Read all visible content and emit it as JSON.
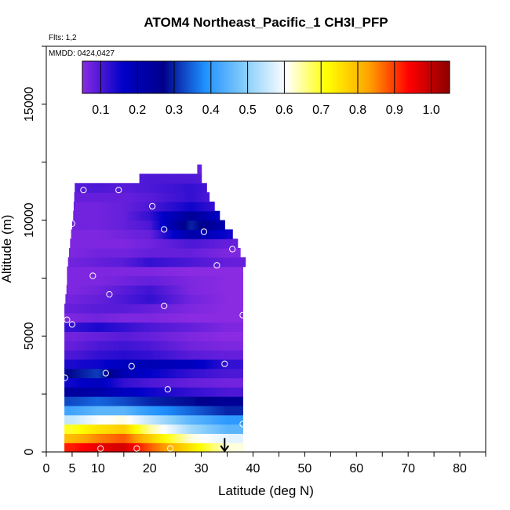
{
  "chart_data": {
    "type": "heatmap",
    "title": "ATOM4 Northeast_Pacific_1 CH3I_PFP",
    "flights_label": "Flts: 1,2",
    "dates_label": "MMDD: 0424,0427",
    "xlabel": "Latitude (deg N)",
    "ylabel": "Altitude (m)",
    "xlim": [
      0,
      85
    ],
    "ylim": [
      0,
      17500
    ],
    "x_ticks": [
      0,
      5,
      10,
      20,
      30,
      40,
      50,
      60,
      70,
      80
    ],
    "y_ticks": [
      0,
      5000,
      10000,
      15000
    ],
    "grid": false,
    "colorbar": {
      "placement": "top",
      "range": [
        0.05,
        1.05
      ],
      "ticks": [
        "0.1",
        "0.2",
        "0.3",
        "0.4",
        "0.5",
        "0.6",
        "0.7",
        "0.8",
        "0.9",
        "1.0"
      ],
      "stops": [
        "#8a2be2",
        "#0000c8",
        "#00008b",
        "#1e90ff",
        "#87cefa",
        "#ffffff",
        "#ffff00",
        "#ffa500",
        "#ff0000",
        "#8b0000"
      ]
    },
    "alt_profile": [
      {
        "alt": 200,
        "v": [
          0.92,
          0.96,
          0.98,
          0.88,
          0.75,
          0.62
        ]
      },
      {
        "alt": 600,
        "v": [
          0.8,
          0.85,
          0.88,
          0.78,
          0.62,
          0.58
        ]
      },
      {
        "alt": 1000,
        "v": [
          0.7,
          0.75,
          0.78,
          0.65,
          0.52,
          0.45
        ]
      },
      {
        "alt": 1400,
        "v": [
          0.55,
          0.6,
          0.62,
          0.55,
          0.45,
          0.4
        ]
      },
      {
        "alt": 1800,
        "v": [
          0.42,
          0.45,
          0.45,
          0.4,
          0.35,
          0.3
        ]
      },
      {
        "alt": 2200,
        "v": [
          0.33,
          0.35,
          0.33,
          0.3,
          0.28,
          0.25
        ]
      },
      {
        "alt": 2600,
        "v": [
          0.24,
          0.22,
          0.18,
          0.15,
          0.12,
          0.1
        ]
      },
      {
        "alt": 3000,
        "v": [
          0.15,
          0.18,
          0.12,
          0.1,
          0.08,
          0.07
        ]
      },
      {
        "alt": 3400,
        "v": [
          0.28,
          0.32,
          0.2,
          0.16,
          0.12,
          0.1
        ]
      },
      {
        "alt": 3800,
        "v": [
          0.14,
          0.15,
          0.18,
          0.2,
          0.18,
          0.12
        ]
      },
      {
        "alt": 4200,
        "v": [
          0.1,
          0.12,
          0.13,
          0.12,
          0.09,
          0.08
        ]
      },
      {
        "alt": 4600,
        "v": [
          0.08,
          0.1,
          0.11,
          0.1,
          0.07,
          0.06
        ]
      },
      {
        "alt": 5000,
        "v": [
          0.07,
          0.08,
          0.09,
          0.08,
          0.06,
          0.05
        ]
      },
      {
        "alt": 5400,
        "v": [
          0.12,
          0.14,
          0.12,
          0.1,
          0.08,
          0.06
        ]
      },
      {
        "alt": 5800,
        "v": [
          0.06,
          0.07,
          0.06,
          0.06,
          0.05,
          0.05
        ]
      },
      {
        "alt": 6200,
        "v": [
          0.08,
          0.09,
          0.09,
          0.08,
          0.06,
          0.05
        ]
      },
      {
        "alt": 6600,
        "v": [
          0.07,
          0.08,
          0.1,
          0.12,
          0.07,
          0.05
        ]
      },
      {
        "alt": 7000,
        "v": [
          0.06,
          0.07,
          0.09,
          0.11,
          0.06,
          0.05
        ]
      },
      {
        "alt": 7400,
        "v": [
          0.06,
          0.06,
          0.07,
          0.08,
          0.06,
          0.05
        ]
      },
      {
        "alt": 7800,
        "v": [
          0.06,
          0.06,
          0.06,
          0.06,
          0.05,
          0.05
        ]
      },
      {
        "alt": 8200,
        "v": [
          0.07,
          0.08,
          0.09,
          0.12,
          0.1,
          0.08
        ]
      },
      {
        "alt": 8600,
        "v": [
          0.06,
          0.07,
          0.07,
          0.08,
          0.08,
          0.06
        ]
      },
      {
        "alt": 9000,
        "v": [
          0.06,
          0.06,
          0.06,
          0.07,
          0.1,
          0.08
        ]
      },
      {
        "alt": 9400,
        "v": [
          0.06,
          0.06,
          0.07,
          0.08,
          0.22,
          0.15
        ]
      },
      {
        "alt": 9800,
        "v": [
          0.07,
          0.07,
          0.08,
          0.1,
          0.3,
          0.2
        ]
      },
      {
        "alt": 10200,
        "v": [
          0.07,
          0.07,
          0.08,
          0.12,
          0.25,
          0.15
        ]
      },
      {
        "alt": 10600,
        "v": [
          0.07,
          0.07,
          0.08,
          0.1,
          0.15,
          0.1
        ]
      },
      {
        "alt": 11000,
        "v": [
          0.08,
          0.08,
          0.08,
          0.09,
          0.12,
          0.08
        ]
      },
      {
        "alt": 11400,
        "v": [
          0.09,
          0.1,
          0.09,
          0.1,
          0.12,
          0.09
        ]
      },
      {
        "alt": 11800,
        "v": [
          0.08,
          0.08,
          0.09,
          0.1,
          0.1,
          0.08
        ]
      },
      {
        "alt": 12200,
        "v": [
          0.06,
          0.06,
          0.07,
          0.08,
          0.08,
          0.07
        ]
      }
    ],
    "lat_nodes": [
      5,
      10,
      15,
      20,
      28,
      35
    ],
    "coverage": [
      {
        "alt": 200,
        "lat": [
          3.5,
          38
        ]
      },
      {
        "alt": 600,
        "lat": [
          3.5,
          38
        ]
      },
      {
        "alt": 1000,
        "lat": [
          3.5,
          38
        ]
      },
      {
        "alt": 1400,
        "lat": [
          3.5,
          38
        ]
      },
      {
        "alt": 1800,
        "lat": [
          3.5,
          38
        ]
      },
      {
        "alt": 2200,
        "lat": [
          3.5,
          38
        ]
      },
      {
        "alt": 2600,
        "lat": [
          3.5,
          38
        ]
      },
      {
        "alt": 3000,
        "lat": [
          3.5,
          38
        ]
      },
      {
        "alt": 3400,
        "lat": [
          3.5,
          38
        ]
      },
      {
        "alt": 3800,
        "lat": [
          3.5,
          38
        ]
      },
      {
        "alt": 4200,
        "lat": [
          3.5,
          38
        ]
      },
      {
        "alt": 4600,
        "lat": [
          3.5,
          38
        ]
      },
      {
        "alt": 5000,
        "lat": [
          3.5,
          38
        ]
      },
      {
        "alt": 5400,
        "lat": [
          3.5,
          38
        ]
      },
      {
        "alt": 5800,
        "lat": [
          3.5,
          38
        ]
      },
      {
        "alt": 6200,
        "lat": [
          3.5,
          38
        ]
      },
      {
        "alt": 6600,
        "lat": [
          3.7,
          38
        ]
      },
      {
        "alt": 7000,
        "lat": [
          3.9,
          38
        ]
      },
      {
        "alt": 7400,
        "lat": [
          4.0,
          38
        ]
      },
      {
        "alt": 7800,
        "lat": [
          4.0,
          38
        ]
      },
      {
        "alt": 8200,
        "lat": [
          4.2,
          38.5
        ]
      },
      {
        "alt": 8600,
        "lat": [
          4.4,
          37.5
        ]
      },
      {
        "alt": 9000,
        "lat": [
          4.6,
          37.0
        ]
      },
      {
        "alt": 9400,
        "lat": [
          4.8,
          36.0
        ]
      },
      {
        "alt": 9800,
        "lat": [
          5.0,
          34.5
        ]
      },
      {
        "alt": 10200,
        "lat": [
          5.2,
          33.5
        ]
      },
      {
        "alt": 10600,
        "lat": [
          5.3,
          32.5
        ]
      },
      {
        "alt": 11000,
        "lat": [
          5.4,
          31.5
        ]
      },
      {
        "alt": 11400,
        "lat": [
          5.5,
          31.0
        ]
      },
      {
        "alt": 11800,
        "lat": [
          18.0,
          30.0
        ]
      },
      {
        "alt": 12200,
        "lat": [
          29.2,
          30.0
        ]
      }
    ],
    "sample_points": [
      {
        "lat": 3.6,
        "alt": 3200
      },
      {
        "lat": 4.0,
        "alt": 5700
      },
      {
        "lat": 5.0,
        "alt": 5500
      },
      {
        "lat": 5.0,
        "alt": 9850
      },
      {
        "lat": 7.2,
        "alt": 11300
      },
      {
        "lat": 9.0,
        "alt": 7600
      },
      {
        "lat": 10.5,
        "alt": 150
      },
      {
        "lat": 11.5,
        "alt": 3400
      },
      {
        "lat": 12.2,
        "alt": 6800
      },
      {
        "lat": 14.0,
        "alt": 11300
      },
      {
        "lat": 16.5,
        "alt": 3700
      },
      {
        "lat": 17.5,
        "alt": 150
      },
      {
        "lat": 20.5,
        "alt": 10600
      },
      {
        "lat": 22.8,
        "alt": 6300
      },
      {
        "lat": 22.8,
        "alt": 9600
      },
      {
        "lat": 23.5,
        "alt": 2700
      },
      {
        "lat": 24.0,
        "alt": 150
      },
      {
        "lat": 30.5,
        "alt": 9500
      },
      {
        "lat": 33.0,
        "alt": 8050
      },
      {
        "lat": 34.5,
        "alt": 3800
      },
      {
        "lat": 36.0,
        "alt": 8750
      },
      {
        "lat": 38.0,
        "alt": 5900
      },
      {
        "lat": 38.0,
        "alt": 1200
      }
    ],
    "arrow_latitude": 34.5
  }
}
